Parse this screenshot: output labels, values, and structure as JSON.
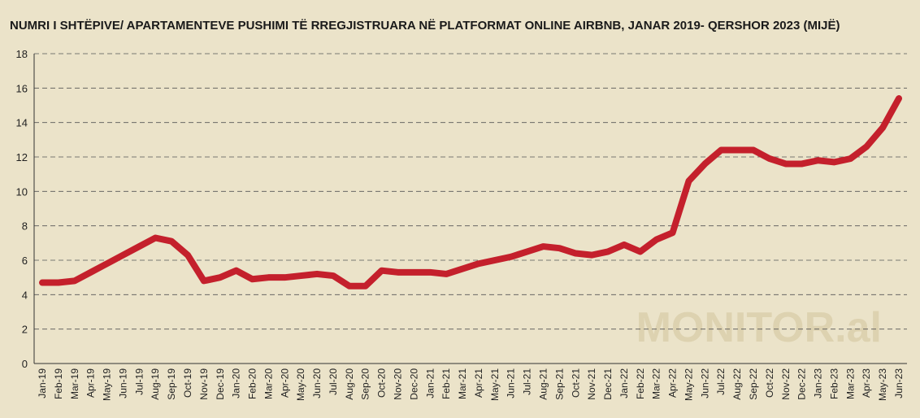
{
  "chart_data": {
    "type": "line",
    "title": "NUMRI I SHTËPIVE/ APARTAMENTEVE PUSHIMI TË RREGJISTRUARA NË PLATFORMAT ONLINE AIRBNB, JANAR 2019- QERSHOR 2023 (MIJË)",
    "watermark": "MONITOR.al",
    "categories": [
      "Jan-19",
      "Feb-19",
      "Mar-19",
      "Apr-19",
      "May-19",
      "Jun-19",
      "Jul-19",
      "Aug-19",
      "Sep-19",
      "Oct-19",
      "Nov-19",
      "Dec-19",
      "Jan-20",
      "Feb-20",
      "Mar-20",
      "Apr-20",
      "May-20",
      "Jun-20",
      "Jul-20",
      "Aug-20",
      "Sep-20",
      "Oct-20",
      "Nov-20",
      "Dec-20",
      "Jan-21",
      "Feb-21",
      "Mar-21",
      "Apr-21",
      "May-21",
      "Jun-21",
      "Jul-21",
      "Aug-21",
      "Sep-21",
      "Oct-21",
      "Nov-21",
      "Dec-21",
      "Jan-22",
      "Feb-22",
      "Mar-22",
      "Apr-22",
      "May-22",
      "Jun-22",
      "Jul-22",
      "Aug-22",
      "Sep-22",
      "Oct-22",
      "Nov-22",
      "Dec-22",
      "Jan-23",
      "Feb-23",
      "Mar-23",
      "Apr-23",
      "May-23",
      "Jun-23"
    ],
    "values": [
      4.7,
      4.7,
      4.8,
      5.3,
      5.8,
      6.3,
      6.8,
      7.3,
      7.1,
      6.3,
      4.8,
      5.0,
      5.4,
      4.9,
      5.0,
      5.0,
      5.1,
      5.2,
      5.1,
      4.5,
      4.5,
      5.4,
      5.3,
      5.3,
      5.3,
      5.2,
      5.5,
      5.8,
      6.0,
      6.2,
      6.5,
      6.8,
      6.7,
      6.4,
      6.3,
      6.5,
      6.9,
      6.5,
      7.2,
      7.6,
      10.6,
      11.6,
      12.4,
      12.4,
      12.4,
      11.9,
      11.6,
      11.6,
      11.8,
      11.7,
      11.9,
      12.6,
      13.7,
      15.4
    ],
    "color": "#c4202c",
    "ylim": [
      0,
      18
    ],
    "yticks": [
      0,
      2,
      4,
      6,
      8,
      10,
      12,
      14,
      16,
      18
    ],
    "grid": true
  }
}
